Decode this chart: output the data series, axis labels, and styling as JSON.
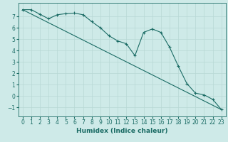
{
  "xlabel": "Humidex (Indice chaleur)",
  "xlim": [
    -0.5,
    23.5
  ],
  "ylim": [
    -1.8,
    8.2
  ],
  "yticks": [
    -1,
    0,
    1,
    2,
    3,
    4,
    5,
    6,
    7
  ],
  "xticks": [
    0,
    1,
    2,
    3,
    4,
    5,
    6,
    7,
    8,
    9,
    10,
    11,
    12,
    13,
    14,
    15,
    16,
    17,
    18,
    19,
    20,
    21,
    22,
    23
  ],
  "bg_color": "#ceeae8",
  "grid_color": "#b8d8d5",
  "line_color": "#1a6b64",
  "line1_x": [
    0,
    1,
    2,
    3,
    4,
    5,
    6,
    7,
    8,
    9,
    10,
    11,
    12,
    13,
    14,
    15,
    16,
    17,
    18,
    19,
    20,
    21,
    22,
    23
  ],
  "line1_y": [
    7.6,
    7.6,
    7.2,
    6.8,
    7.15,
    7.25,
    7.3,
    7.15,
    6.55,
    6.0,
    5.3,
    4.85,
    4.6,
    3.55,
    5.6,
    5.9,
    5.6,
    4.3,
    2.65,
    1.1,
    0.25,
    0.1,
    -0.3,
    -1.2
  ],
  "line2_x": [
    0,
    23
  ],
  "line2_y": [
    7.6,
    -1.2
  ],
  "figsize": [
    3.2,
    2.0
  ],
  "dpi": 100,
  "label_fontsize": 6.5,
  "tick_fontsize": 5.5
}
